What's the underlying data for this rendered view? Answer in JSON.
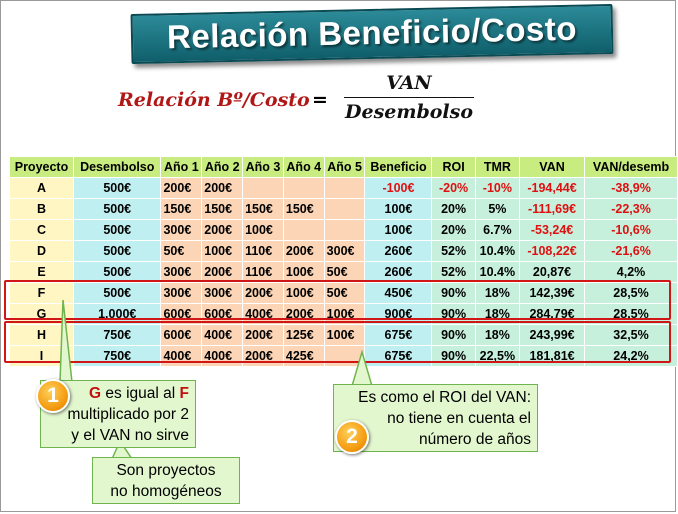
{
  "title": "Relación Beneficio/Costo",
  "formula": {
    "lhs": "Relación Bº/Costo",
    "equals": "=",
    "numerator": "VAN",
    "denominator": "Desembolso"
  },
  "table": {
    "headers": [
      "Proyecto",
      "Desembolso",
      "Año 1",
      "Año 2",
      "Año 3",
      "Año 4",
      "Año 5",
      "Beneficio",
      "ROI",
      "TMR",
      "VAN",
      "VAN/desemb"
    ],
    "rows": [
      [
        "A",
        "500€",
        "200€",
        "200€",
        "",
        "",
        "",
        "-100€",
        "-20%",
        "-10%",
        "-194,44€",
        "-38,9%"
      ],
      [
        "B",
        "500€",
        "150€",
        "150€",
        "150€",
        "150€",
        "",
        "100€",
        "20%",
        "5%",
        "-111,69€",
        "-22,3%"
      ],
      [
        "C",
        "500€",
        "300€",
        "200€",
        "100€",
        "",
        "",
        "100€",
        "20%",
        "6.7%",
        "-53,24€",
        "-10,6%"
      ],
      [
        "D",
        "500€",
        "50€",
        "100€",
        "110€",
        "200€",
        "300€",
        "260€",
        "52%",
        "10.4%",
        "-108,22€",
        "-21,6%"
      ],
      [
        "E",
        "500€",
        "300€",
        "200€",
        "110€",
        "100€",
        "50€",
        "260€",
        "52%",
        "10.4%",
        "20,87€",
        "4,2%"
      ],
      [
        "F",
        "500€",
        "300€",
        "300€",
        "200€",
        "100€",
        "50€",
        "450€",
        "90%",
        "18%",
        "142,39€",
        "28,5%"
      ],
      [
        "G",
        "1.000€",
        "600€",
        "600€",
        "400€",
        "200€",
        "100€",
        "900€",
        "90%",
        "18%",
        "284,79€",
        "28,5%"
      ],
      [
        "H",
        "750€",
        "600€",
        "400€",
        "200€",
        "125€",
        "100€",
        "675€",
        "90%",
        "18%",
        "243,99€",
        "32,5%"
      ],
      [
        "I",
        "750€",
        "400€",
        "400€",
        "200€",
        "425€",
        "",
        "675€",
        "90%",
        "22,5%",
        "181,81€",
        "24,2%"
      ]
    ],
    "negative_color": "#e01010"
  },
  "callouts": {
    "callout1": {
      "badge": "1",
      "line1_a": "G",
      "line1_b": " es igual al ",
      "line1_c": "F",
      "line2": "multiplicado por 2",
      "line3": "y el VAN no sirve"
    },
    "callout2": {
      "badge": "2",
      "line1": "Es como el ROI del VAN:",
      "line2": "no tiene en cuenta el",
      "line3": "número de años"
    },
    "callout3": {
      "line1": "Son proyectos",
      "line2": "no homogéneos"
    }
  },
  "colors": {
    "title_banner": "#1b7582",
    "header_bg": "#c8ec7f",
    "highlight_border": "#d01616",
    "callout_bg": "#e3f7cf",
    "badge": "#f39a0e"
  }
}
